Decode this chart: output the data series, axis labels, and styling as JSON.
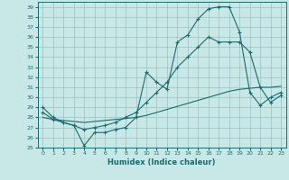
{
  "xlabel": "Humidex (Indice chaleur)",
  "bg_color": "#c8e8e8",
  "grid_color": "#9bbfbf",
  "line_color": "#1a6b6b",
  "xlim": [
    -0.5,
    23.5
  ],
  "ylim": [
    25,
    39.5
  ],
  "xticks": [
    0,
    1,
    2,
    3,
    4,
    5,
    6,
    7,
    8,
    9,
    10,
    11,
    12,
    13,
    14,
    15,
    16,
    17,
    18,
    19,
    20,
    21,
    22,
    23
  ],
  "yticks": [
    25,
    26,
    27,
    28,
    29,
    30,
    31,
    32,
    33,
    34,
    35,
    36,
    37,
    38,
    39
  ],
  "line1_x": [
    0,
    1,
    2,
    3,
    4,
    5,
    6,
    7,
    8,
    9,
    10,
    11,
    12,
    13,
    14,
    15,
    16,
    17,
    18,
    19,
    20,
    21,
    22,
    23
  ],
  "line1_y": [
    29.0,
    28.0,
    27.5,
    27.2,
    25.2,
    26.5,
    26.5,
    26.8,
    27.0,
    28.0,
    32.5,
    31.5,
    30.8,
    35.5,
    36.2,
    37.8,
    38.8,
    39.0,
    39.0,
    36.5,
    30.5,
    29.2,
    30.0,
    30.5
  ],
  "line2_x": [
    0,
    1,
    2,
    3,
    4,
    5,
    6,
    7,
    8,
    9,
    10,
    11,
    12,
    13,
    14,
    15,
    16,
    17,
    18,
    19,
    20,
    21,
    22,
    23
  ],
  "line2_y": [
    28.5,
    27.8,
    27.5,
    27.2,
    26.8,
    27.0,
    27.2,
    27.5,
    28.0,
    28.5,
    29.5,
    30.5,
    31.5,
    33.0,
    34.0,
    35.0,
    36.0,
    35.5,
    35.5,
    35.5,
    34.5,
    31.0,
    29.5,
    30.2
  ],
  "line3_x": [
    0,
    1,
    2,
    3,
    4,
    5,
    6,
    7,
    8,
    9,
    10,
    11,
    12,
    13,
    14,
    15,
    16,
    17,
    18,
    19,
    20,
    21,
    22,
    23
  ],
  "line3_y": [
    28.0,
    27.8,
    27.7,
    27.6,
    27.5,
    27.6,
    27.7,
    27.8,
    27.9,
    28.0,
    28.2,
    28.5,
    28.8,
    29.1,
    29.4,
    29.7,
    30.0,
    30.3,
    30.6,
    30.8,
    30.9,
    31.0,
    31.0,
    31.1
  ]
}
